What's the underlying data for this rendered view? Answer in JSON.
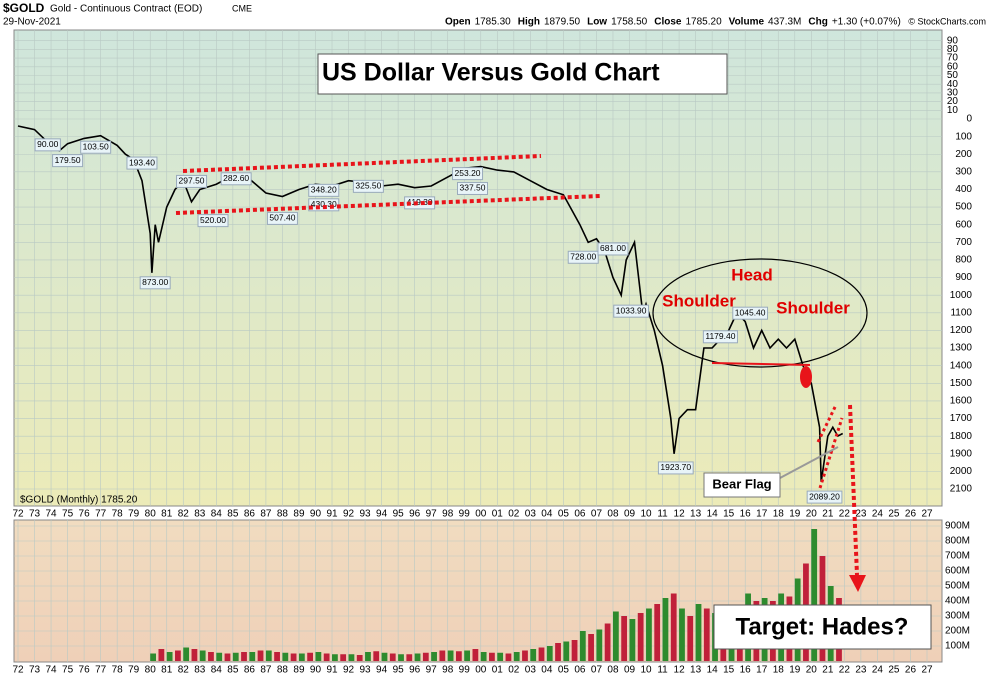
{
  "chart_data": {
    "type": "line",
    "title": "US Dollar Versus Gold Chart",
    "symbol": "$GOLD",
    "name": "Gold - Continuous Contract (EOD)",
    "exchange": "CME",
    "date": "29-Nov-2021",
    "source": "© StockCharts.com",
    "stats": [
      {
        "label": "Open",
        "value": "1785.30"
      },
      {
        "label": "High",
        "value": "1879.50"
      },
      {
        "label": "Low",
        "value": "1758.50"
      },
      {
        "label": "Close",
        "value": "1785.20"
      },
      {
        "label": "Volume",
        "value": "437.3M"
      },
      {
        "label": "Chg",
        "value": "+1.30 (+0.07%)"
      }
    ],
    "legend": "$GOLD (Monthly) 1785.20",
    "annotations": {
      "head": "Head",
      "left_shoulder": "Shoulder",
      "right_shoulder": "Shoulder",
      "flag": "Bear Flag",
      "target": "Target: Hades?"
    },
    "xlim": [
      1972,
      2027
    ],
    "xticks": [
      {
        "value": 1972,
        "label": "72"
      },
      {
        "value": 1973,
        "label": "73"
      },
      {
        "value": 1974,
        "label": "74"
      },
      {
        "value": 1975,
        "label": "75"
      },
      {
        "value": 1976,
        "label": "76"
      },
      {
        "value": 1977,
        "label": "77"
      },
      {
        "value": 1978,
        "label": "78"
      },
      {
        "value": 1979,
        "label": "79"
      },
      {
        "value": 1980,
        "label": "80"
      },
      {
        "value": 1981,
        "label": "81"
      },
      {
        "value": 1982,
        "label": "82"
      },
      {
        "value": 1983,
        "label": "83"
      },
      {
        "value": 1984,
        "label": "84"
      },
      {
        "value": 1985,
        "label": "85"
      },
      {
        "value": 1986,
        "label": "86"
      },
      {
        "value": 1987,
        "label": "87"
      },
      {
        "value": 1988,
        "label": "88"
      },
      {
        "value": 1989,
        "label": "89"
      },
      {
        "value": 1990,
        "label": "90"
      },
      {
        "value": 1991,
        "label": "91"
      },
      {
        "value": 1992,
        "label": "92"
      },
      {
        "value": 1993,
        "label": "93"
      },
      {
        "value": 1994,
        "label": "94"
      },
      {
        "value": 1995,
        "label": "95"
      },
      {
        "value": 1996,
        "label": "96"
      },
      {
        "value": 1997,
        "label": "97"
      },
      {
        "value": 1998,
        "label": "98"
      },
      {
        "value": 1999,
        "label": "99"
      },
      {
        "value": 2000,
        "label": "00"
      },
      {
        "value": 2001,
        "label": "01"
      },
      {
        "value": 2002,
        "label": "02"
      },
      {
        "value": 2003,
        "label": "03"
      },
      {
        "value": 2004,
        "label": "04"
      },
      {
        "value": 2005,
        "label": "05"
      },
      {
        "value": 2006,
        "label": "06"
      },
      {
        "value": 2007,
        "label": "07"
      },
      {
        "value": 2008,
        "label": "08"
      },
      {
        "value": 2009,
        "label": "09"
      },
      {
        "value": 2010,
        "label": "10"
      },
      {
        "value": 2011,
        "label": "11"
      },
      {
        "value": 2012,
        "label": "12"
      },
      {
        "value": 2013,
        "label": "13"
      },
      {
        "value": 2014,
        "label": "14"
      },
      {
        "value": 2015,
        "label": "15"
      },
      {
        "value": 2016,
        "label": "16"
      },
      {
        "value": 2017,
        "label": "17"
      },
      {
        "value": 2018,
        "label": "18"
      },
      {
        "value": 2019,
        "label": "19"
      },
      {
        "value": 2020,
        "label": "20"
      },
      {
        "value": 2021,
        "label": "21"
      },
      {
        "value": 2022,
        "label": "22"
      },
      {
        "value": 2023,
        "label": "23"
      },
      {
        "value": 2024,
        "label": "24"
      },
      {
        "value": 2025,
        "label": "25"
      },
      {
        "value": 2026,
        "label": "26"
      },
      {
        "value": 2027,
        "label": "27"
      }
    ],
    "ylim": [
      0,
      2100
    ],
    "yticks": [
      0,
      100,
      200,
      300,
      400,
      500,
      600,
      700,
      800,
      900,
      1000,
      1100,
      1200,
      1300,
      1400,
      1500,
      1600,
      1700,
      1800,
      1900,
      2000,
      2100
    ],
    "ylim_upper": [
      0,
      100
    ],
    "yticks_upper": [
      90,
      80,
      70,
      60,
      50,
      40,
      30,
      20,
      10
    ],
    "inverted": true,
    "grid": true,
    "series": [
      {
        "name": "$GOLD",
        "color": "#000000",
        "x": [
          1972,
          1973,
          1974,
          1974.5,
          1975,
          1976,
          1977,
          1978,
          1978.5,
          1979,
          1979.5,
          1980,
          1980.1,
          1980.3,
          1980.5,
          1981,
          1981.5,
          1982,
          1982.5,
          1983,
          1984,
          1985,
          1986,
          1987,
          1988,
          1989,
          1990,
          1991,
          1992,
          1993,
          1994,
          1995,
          1996,
          1997,
          1998,
          1999,
          2000,
          2001,
          2002,
          2003,
          2004,
          2005,
          2006,
          2006.5,
          2007,
          2007.5,
          2008,
          2008.5,
          2008.8,
          2009.3,
          2009.8,
          2010,
          2010.5,
          2011,
          2011.5,
          2011.7,
          2012,
          2012.5,
          2013,
          2013.5,
          2014,
          2014.5,
          2015,
          2015.5,
          2016,
          2016.5,
          2017,
          2017.5,
          2018,
          2018.5,
          2019,
          2019.5,
          2020,
          2020.5,
          2020.6,
          2021,
          2021.3,
          2021.6,
          2021.9
        ],
        "values": [
          40,
          60,
          150,
          180,
          140,
          110,
          95,
          150,
          200,
          230,
          350,
          650,
          873,
          600,
          700,
          500,
          400,
          350,
          470,
          400,
          370,
          320,
          340,
          420,
          440,
          400,
          370,
          380,
          350,
          360,
          380,
          370,
          390,
          380,
          330,
          280,
          270,
          290,
          300,
          350,
          400,
          430,
          600,
          700,
          680,
          750,
          900,
          1000,
          800,
          700,
          1100,
          1050,
          1200,
          1400,
          1700,
          1900,
          1700,
          1650,
          1650,
          1300,
          1300,
          1250,
          1200,
          1100,
          1150,
          1300,
          1200,
          1300,
          1250,
          1300,
          1250,
          1400,
          1500,
          1750,
          2060,
          1800,
          1750,
          1800,
          1785
        ]
      }
    ],
    "point_labels": [
      {
        "x": 1973.8,
        "value": {
          "value": 90,
          "label": "90.00"
        }
      },
      {
        "x": 1975,
        "value": {
          "value": 179.5,
          "label": "179.50"
        }
      },
      {
        "x": 1976.7,
        "value": {
          "value": 103.5,
          "label": "103.50"
        }
      },
      {
        "x": 1979.5,
        "value": {
          "value": 193.4,
          "label": "193.40"
        }
      },
      {
        "x": 1980.3,
        "value": {
          "value": 873,
          "label": "873.00"
        }
      },
      {
        "x": 1982.5,
        "value": {
          "value": 297.5,
          "label": "297.50"
        }
      },
      {
        "x": 1983.8,
        "value": {
          "value": 520,
          "label": "520.00"
        }
      },
      {
        "x": 1985.2,
        "value": {
          "value": 282.6,
          "label": "282.60"
        }
      },
      {
        "x": 1988,
        "value": {
          "value": 507.4,
          "label": "507.40"
        }
      },
      {
        "x": 1990.5,
        "value": {
          "value": 348.2,
          "label": "348.20"
        }
      },
      {
        "x": 1990.5,
        "value": {
          "value": 430.3,
          "label": "430.30"
        }
      },
      {
        "x": 1993.2,
        "value": {
          "value": 325.5,
          "label": "325.50"
        }
      },
      {
        "x": 1996.3,
        "value": {
          "value": 419.3,
          "label": "419.30"
        }
      },
      {
        "x": 1999.2,
        "value": {
          "value": 253.2,
          "label": "253.20"
        }
      },
      {
        "x": 1999.5,
        "value": {
          "value": 337.5,
          "label": "337.50"
        }
      },
      {
        "x": 2006.2,
        "value": {
          "value": 728,
          "label": "728.00"
        }
      },
      {
        "x": 2008,
        "value": {
          "value": 681,
          "label": "681.00"
        }
      },
      {
        "x": 2009.1,
        "value": {
          "value": 1033.9,
          "label": "1033.90"
        }
      },
      {
        "x": 2011.8,
        "value": {
          "value": 1923.7,
          "label": "1923.70"
        }
      },
      {
        "x": 2014.5,
        "value": {
          "value": 1179.4,
          "label": "1179.40"
        }
      },
      {
        "x": 2016.3,
        "value": {
          "value": 1045.4,
          "label": "1045.40"
        }
      },
      {
        "x": 2020.8,
        "value": {
          "value": 2089.2,
          "label": "2089.20"
        }
      }
    ],
    "volume": {
      "colors": [
        "#2e8b2e",
        "#c0203a"
      ],
      "ylim": [
        0,
        940
      ],
      "yticks": [
        {
          "value": 100,
          "label": "100M"
        },
        {
          "value": 200,
          "label": "200M"
        },
        {
          "value": 300,
          "label": "300M"
        },
        {
          "value": 400,
          "label": "400M"
        },
        {
          "value": 500,
          "label": "500M"
        },
        {
          "value": 600,
          "label": "600M"
        },
        {
          "value": 700,
          "label": "700M"
        },
        {
          "value": 800,
          "label": "800M"
        },
        {
          "value": 900,
          "label": "900M"
        }
      ],
      "x": [
        1980,
        1980.5,
        1981,
        1981.5,
        1982,
        1982.5,
        1983,
        1983.5,
        1984,
        1984.5,
        1985,
        1985.5,
        1986,
        1986.5,
        1987,
        1987.5,
        1988,
        1988.5,
        1989,
        1989.5,
        1990,
        1990.5,
        1991,
        1991.5,
        1992,
        1992.5,
        1993,
        1993.5,
        1994,
        1994.5,
        1995,
        1995.5,
        1996,
        1996.5,
        1997,
        1997.5,
        1998,
        1998.5,
        1999,
        1999.5,
        2000,
        2000.5,
        2001,
        2001.5,
        2002,
        2002.5,
        2003,
        2003.5,
        2004,
        2004.5,
        2005,
        2005.5,
        2006,
        2006.5,
        2007,
        2007.5,
        2008,
        2008.5,
        2009,
        2009.5,
        2010,
        2010.5,
        2011,
        2011.5,
        2012,
        2012.5,
        2013,
        2013.5,
        2014,
        2014.5,
        2015,
        2015.5,
        2016,
        2016.5,
        2017,
        2017.5,
        2018,
        2018.5,
        2019,
        2019.5,
        2020,
        2020.5,
        2021,
        2021.5
      ],
      "values": [
        50,
        80,
        60,
        70,
        90,
        80,
        70,
        60,
        55,
        50,
        55,
        60,
        60,
        70,
        70,
        60,
        55,
        50,
        50,
        55,
        60,
        50,
        45,
        45,
        45,
        40,
        60,
        65,
        55,
        50,
        45,
        45,
        50,
        55,
        60,
        70,
        70,
        65,
        70,
        80,
        60,
        55,
        55,
        50,
        60,
        70,
        80,
        90,
        100,
        120,
        130,
        140,
        200,
        180,
        210,
        250,
        330,
        300,
        280,
        320,
        350,
        380,
        420,
        450,
        350,
        300,
        380,
        350,
        320,
        300,
        300,
        320,
        450,
        400,
        420,
        400,
        450,
        430,
        550,
        650,
        880,
        700,
        500,
        420
      ]
    }
  }
}
